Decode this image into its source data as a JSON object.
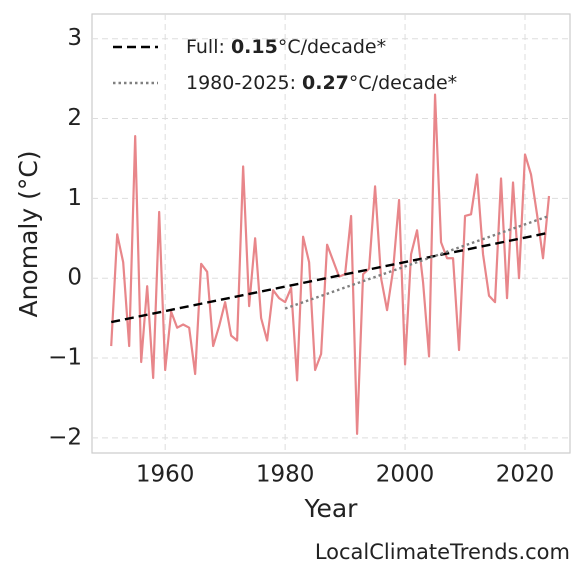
{
  "chart_data": {
    "type": "line",
    "x_label": "Year",
    "y_label": "Anomaly (°C)",
    "source": "LocalClimateTrends.com",
    "color": "#e8868a",
    "x": [
      1951,
      1952,
      1953,
      1954,
      1955,
      1956,
      1957,
      1958,
      1959,
      1960,
      1961,
      1962,
      1963,
      1964,
      1965,
      1966,
      1967,
      1968,
      1969,
      1970,
      1971,
      1972,
      1973,
      1974,
      1975,
      1976,
      1977,
      1978,
      1979,
      1980,
      1981,
      1982,
      1983,
      1984,
      1985,
      1986,
      1987,
      1988,
      1989,
      1990,
      1991,
      1992,
      1993,
      1994,
      1995,
      1996,
      1997,
      1998,
      1999,
      2000,
      2001,
      2002,
      2003,
      2004,
      2005,
      2006,
      2007,
      2008,
      2009,
      2010,
      2011,
      2012,
      2013,
      2014,
      2015,
      2016,
      2017,
      2018,
      2019,
      2020,
      2021,
      2022,
      2023,
      2024
    ],
    "values": [
      -0.85,
      0.55,
      0.2,
      -0.85,
      1.78,
      -1.05,
      -0.1,
      -1.25,
      0.83,
      -1.15,
      -0.42,
      -0.62,
      -0.58,
      -0.62,
      -1.2,
      0.18,
      0.08,
      -0.85,
      -0.6,
      -0.3,
      -0.72,
      -0.78,
      1.4,
      -0.35,
      0.5,
      -0.5,
      -0.78,
      -0.15,
      -0.25,
      -0.3,
      -0.12,
      -1.28,
      0.52,
      0.2,
      -1.15,
      -0.95,
      0.42,
      0.22,
      0.02,
      0.05,
      0.78,
      -1.95,
      0.05,
      0.12,
      1.15,
      0.0,
      -0.4,
      0.1,
      0.98,
      -1.08,
      0.3,
      0.6,
      -0.05,
      -0.98,
      2.3,
      0.45,
      0.25,
      0.25,
      -0.9,
      0.78,
      0.8,
      1.3,
      0.3,
      -0.22,
      -0.3,
      1.25,
      -0.25,
      1.2,
      0.0,
      1.55,
      1.3,
      0.8,
      0.25,
      1.03
    ],
    "trends": [
      {
        "name": "Full:",
        "rate": 0.15,
        "unit": "°C/decade*",
        "color": "#000000",
        "dash": "dashed",
        "x": [
          1951,
          2024
        ],
        "values": [
          -0.55,
          0.57
        ]
      },
      {
        "name": "1980-2025:",
        "rate": 0.27,
        "unit": "°C/decade*",
        "color": "#808080",
        "dash": "dotted",
        "x": [
          1980,
          2024
        ],
        "values": [
          -0.38,
          0.78
        ]
      }
    ],
    "xlim": [
      1947.8,
      2027.5
    ],
    "ylim": [
      -2.19,
      3.31
    ],
    "xticks": [
      1960,
      1980,
      2000,
      2020
    ],
    "yticks": [
      {
        "value": -2,
        "label": "−2"
      },
      {
        "value": -1,
        "label": "−1"
      },
      0,
      1,
      2,
      3
    ],
    "grid": true,
    "legend": "upper left"
  }
}
